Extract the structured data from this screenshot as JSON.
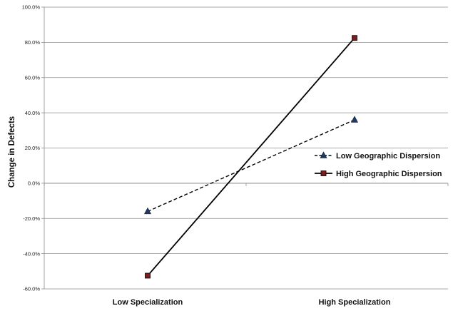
{
  "chart_data": {
    "type": "line",
    "categories": [
      "Low Specialization",
      "High Specialization"
    ],
    "series": [
      {
        "name": "Low Geographic Dispersion",
        "values": [
          -16.0,
          36.0
        ],
        "color": "#1f3864",
        "dash": "dashed",
        "marker": "triangle"
      },
      {
        "name": "High Geographic Dispersion",
        "values": [
          -52.5,
          82.5
        ],
        "color": "#000000",
        "dash": "solid",
        "marker": "square",
        "marker_color": "#7b1e1e"
      }
    ],
    "title": "",
    "xlabel": "",
    "ylabel": "Change in Defects",
    "ylim": [
      -60,
      100
    ],
    "ytick_step": 20,
    "ytick_labels": [
      "-60.0%",
      "-40.0%",
      "-20.0%",
      "0.0%",
      "20.0%",
      "40.0%",
      "60.0%",
      "80.0%",
      "100.0%"
    ],
    "grid": true,
    "legend_position": "right"
  }
}
